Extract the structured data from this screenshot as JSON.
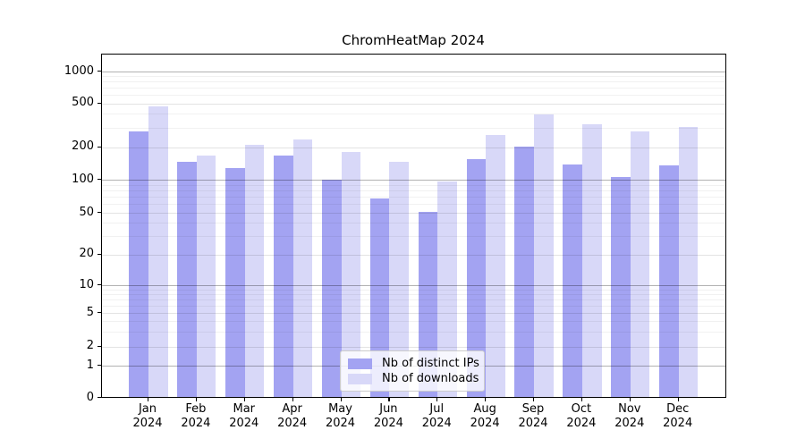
{
  "title": "ChromHeatMap 2024",
  "chart_data": {
    "type": "bar",
    "title": "ChromHeatMap 2024",
    "months": [
      "Jan",
      "Feb",
      "Mar",
      "Apr",
      "May",
      "Jun",
      "Jul",
      "Aug",
      "Sep",
      "Oct",
      "Nov",
      "Dec"
    ],
    "year": "2024",
    "series": [
      {
        "name": "Nb of distinct IPs",
        "color": "#a3a3f2",
        "values": [
          280,
          146,
          128,
          167,
          100,
          68,
          51,
          156,
          201,
          139,
          105,
          136
        ]
      },
      {
        "name": "Nb of downloads",
        "color": "#d8d8f8",
        "values": [
          465,
          167,
          210,
          235,
          180,
          145,
          97,
          257,
          398,
          322,
          277,
          303
        ]
      }
    ],
    "yticks": [
      0,
      1,
      2,
      5,
      10,
      20,
      50,
      100,
      200,
      500,
      1000
    ],
    "yscale": "symlog",
    "ylim": [
      0,
      1400
    ],
    "grid": true,
    "legend_position": "lower center"
  }
}
